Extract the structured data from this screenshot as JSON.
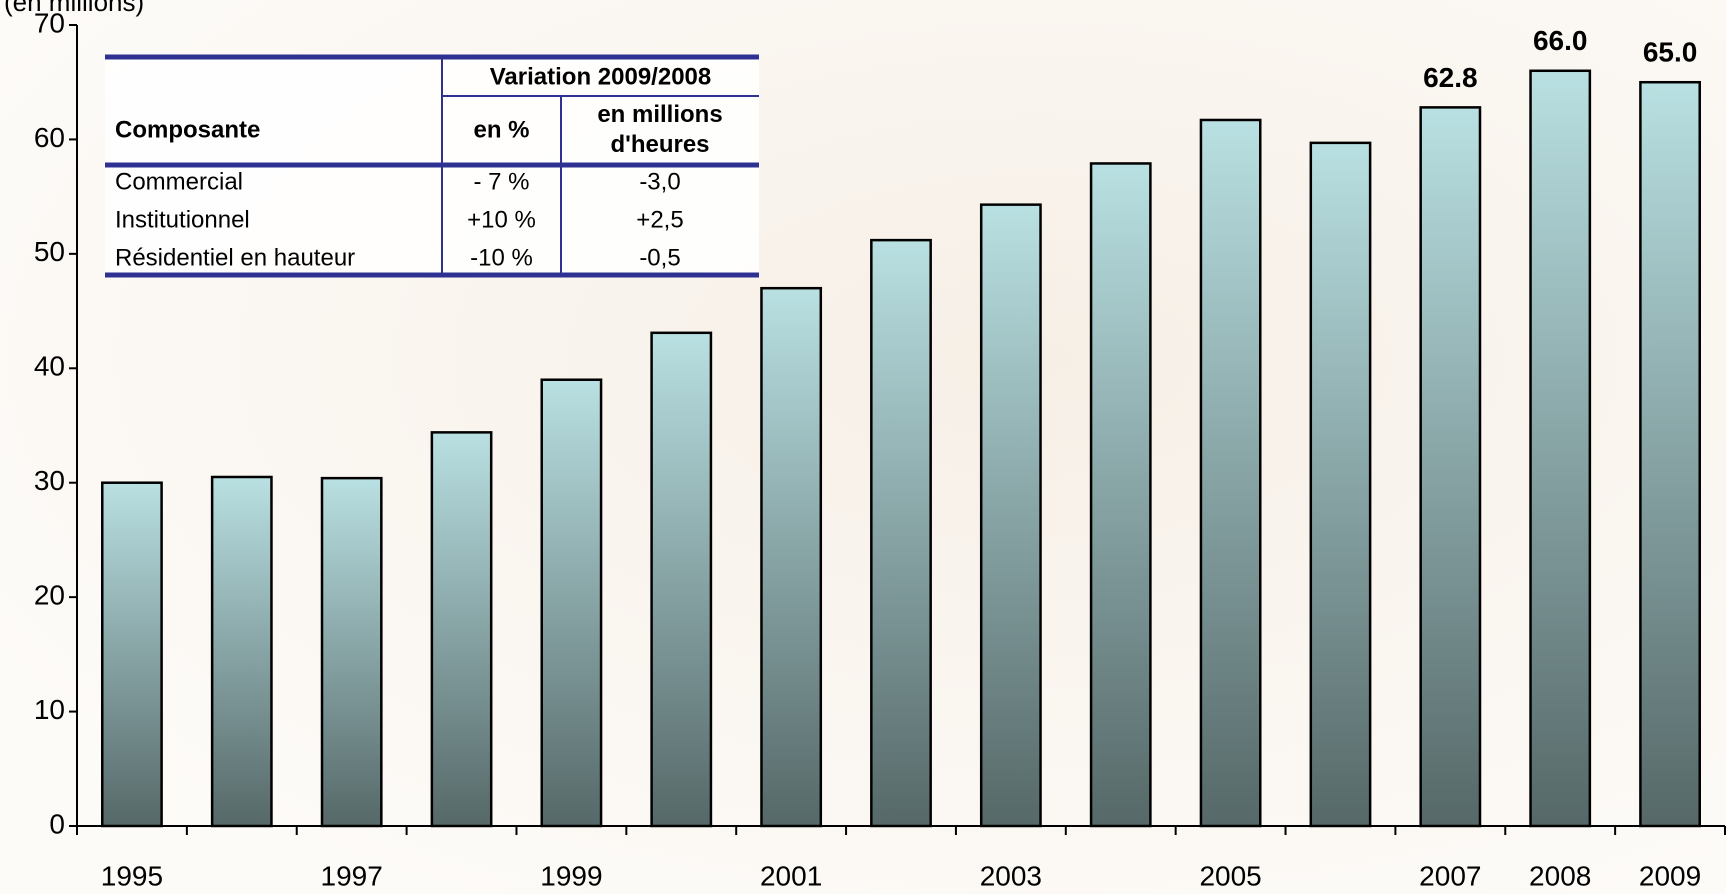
{
  "chart_data": {
    "type": "bar",
    "y_label": "(en millions)",
    "categories": [
      "1995",
      null,
      "1997",
      null,
      "1999",
      null,
      "2001",
      null,
      "2003",
      null,
      "2005",
      null,
      "2007",
      "2008",
      "2009"
    ],
    "values": [
      30.0,
      30.5,
      30.4,
      34.4,
      39.0,
      43.1,
      47.0,
      51.2,
      54.3,
      57.9,
      61.7,
      59.7,
      62.8,
      66.0,
      65.0
    ],
    "value_labels": [
      null,
      null,
      null,
      null,
      null,
      null,
      null,
      null,
      null,
      null,
      null,
      null,
      "62.8",
      "66.0",
      "65.0"
    ],
    "color": [
      "#b9e0e2",
      "#566868"
    ],
    "ylim": [
      0,
      70
    ],
    "yticks": [
      0,
      10,
      20,
      30,
      40,
      50,
      60,
      70
    ],
    "table": {
      "header": {
        "col0": "Composante",
        "group": "Variation 2009/2008",
        "col1": "en %",
        "col2": "en millions d'heures"
      },
      "rows": [
        [
          "Commercial",
          "- 7 %",
          "-3,0"
        ],
        [
          "Institutionnel",
          "+10 %",
          "+2,5"
        ],
        [
          "Résidentiel en hauteur",
          "-10 %",
          "-0,5"
        ]
      ]
    }
  }
}
